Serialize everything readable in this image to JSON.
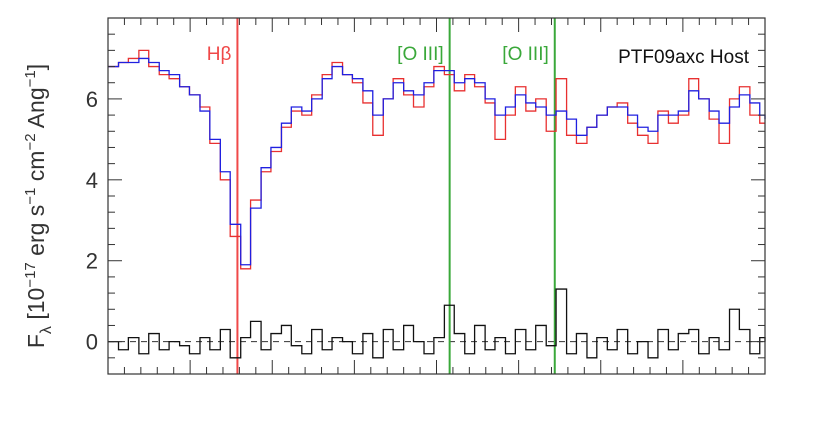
{
  "chart_data": {
    "type": "line",
    "title": "PTF09axc Host",
    "ylabel_parts": {
      "lead": "F",
      "sub": "λ",
      "open": " [10",
      "exp1": "−17",
      "unit1": " erg s",
      "exp2": "−1",
      "unit2": " cm",
      "exp3": "−2",
      "unit3": " Ang",
      "exp4": "−1",
      "close": "]"
    },
    "xlabel": "",
    "ylim": [
      -0.8,
      8.0
    ],
    "xlim": [
      0,
      100
    ],
    "yticks": [
      "0",
      "2",
      "4",
      "6"
    ],
    "ytick_values": [
      0,
      2,
      4,
      6
    ],
    "lines": [
      {
        "label": "Hβ",
        "x": 19.7,
        "color": "#f04848"
      },
      {
        "label": "[O III]",
        "x": 52.0,
        "color": "#3aa83a"
      },
      {
        "label": "[O III]",
        "x": 68.0,
        "color": "#3aa83a"
      }
    ],
    "series": [
      {
        "color": "#e83030",
        "style": "steps",
        "x": [
          0.0,
          1.6,
          3.1,
          4.7,
          6.2,
          7.8,
          9.3,
          10.9,
          12.4,
          14.0,
          15.5,
          17.1,
          18.6,
          20.2,
          21.7,
          23.3,
          24.8,
          26.4,
          27.9,
          29.5,
          31.0,
          32.6,
          34.1,
          35.7,
          37.2,
          38.8,
          40.3,
          41.9,
          43.4,
          45.0,
          46.5,
          48.1,
          49.6,
          51.2,
          52.7,
          54.3,
          55.8,
          57.4,
          58.9,
          60.5,
          62.0,
          63.6,
          65.1,
          66.7,
          68.2,
          69.8,
          71.3,
          72.9,
          74.4,
          76.0,
          77.5,
          79.1,
          80.6,
          82.2,
          83.7,
          85.3,
          86.8,
          88.4,
          89.9,
          91.5,
          93.0,
          94.6,
          96.1,
          97.7,
          99.2,
          100.0
        ],
        "y": [
          6.8,
          6.9,
          7.0,
          7.2,
          6.8,
          6.6,
          6.5,
          6.3,
          6.1,
          5.8,
          4.9,
          4.0,
          2.6,
          1.8,
          3.5,
          4.2,
          4.7,
          5.3,
          5.7,
          5.6,
          6.1,
          6.6,
          6.9,
          6.6,
          6.4,
          5.9,
          5.1,
          6.0,
          6.5,
          6.1,
          5.8,
          6.3,
          6.8,
          6.6,
          6.2,
          6.6,
          6.3,
          5.9,
          5.0,
          5.6,
          6.3,
          5.7,
          6.0,
          5.2,
          6.5,
          5.1,
          4.9,
          5.3,
          5.6,
          5.8,
          5.9,
          5.4,
          5.1,
          4.9,
          5.7,
          5.4,
          5.6,
          6.5,
          6.0,
          5.5,
          4.9,
          6.0,
          6.3,
          5.6,
          5.4,
          5.4
        ]
      },
      {
        "color": "#2020e0",
        "style": "steps",
        "x": [
          0.0,
          1.6,
          3.1,
          4.7,
          6.2,
          7.8,
          9.3,
          10.9,
          12.4,
          14.0,
          15.5,
          17.1,
          18.6,
          20.2,
          21.7,
          23.3,
          24.8,
          26.4,
          27.9,
          29.5,
          31.0,
          32.6,
          34.1,
          35.7,
          37.2,
          38.8,
          40.3,
          41.9,
          43.4,
          45.0,
          46.5,
          48.1,
          49.6,
          51.2,
          52.7,
          54.3,
          55.8,
          57.4,
          58.9,
          60.5,
          62.0,
          63.6,
          65.1,
          66.7,
          68.2,
          69.8,
          71.3,
          72.9,
          74.4,
          76.0,
          77.5,
          79.1,
          80.6,
          82.2,
          83.7,
          85.3,
          86.8,
          88.4,
          89.9,
          91.5,
          93.0,
          94.6,
          96.1,
          97.7,
          99.2,
          100.0
        ],
        "y": [
          6.8,
          6.9,
          6.9,
          7.0,
          6.9,
          6.7,
          6.6,
          6.3,
          6.1,
          5.7,
          5.0,
          4.2,
          2.9,
          1.9,
          3.3,
          4.3,
          4.8,
          5.4,
          5.8,
          5.7,
          6.0,
          6.5,
          6.8,
          6.6,
          6.5,
          6.2,
          5.6,
          6.0,
          6.4,
          6.2,
          6.1,
          6.4,
          6.7,
          6.7,
          6.4,
          6.5,
          6.4,
          6.0,
          5.6,
          5.8,
          6.1,
          5.9,
          5.8,
          5.6,
          5.7,
          5.5,
          5.1,
          5.3,
          5.6,
          5.8,
          5.8,
          5.6,
          5.3,
          5.2,
          5.6,
          5.6,
          5.7,
          6.2,
          6.0,
          5.7,
          5.4,
          5.8,
          6.1,
          5.9,
          5.6,
          5.5
        ]
      },
      {
        "color": "#111111",
        "style": "steps",
        "x": [
          0.0,
          1.6,
          3.1,
          4.7,
          6.2,
          7.8,
          9.3,
          10.9,
          12.4,
          14.0,
          15.5,
          17.1,
          18.6,
          20.2,
          21.7,
          23.3,
          24.8,
          26.4,
          27.9,
          29.5,
          31.0,
          32.6,
          34.1,
          35.7,
          37.2,
          38.8,
          40.3,
          41.9,
          43.4,
          45.0,
          46.5,
          48.1,
          49.6,
          51.2,
          52.7,
          54.3,
          55.8,
          57.4,
          58.9,
          60.5,
          62.0,
          63.6,
          65.1,
          66.7,
          68.2,
          69.8,
          71.3,
          72.9,
          74.4,
          76.0,
          77.5,
          79.1,
          80.6,
          82.2,
          83.7,
          85.3,
          86.8,
          88.4,
          89.9,
          91.5,
          93.0,
          94.6,
          96.1,
          97.7,
          99.2,
          100.0
        ],
        "y": [
          0.0,
          -0.2,
          0.1,
          -0.3,
          0.2,
          -0.2,
          0.0,
          -0.1,
          -0.3,
          0.1,
          -0.2,
          0.3,
          -0.4,
          0.1,
          0.5,
          -0.2,
          0.2,
          0.4,
          -0.1,
          -0.3,
          0.3,
          -0.2,
          0.1,
          0.0,
          -0.3,
          0.2,
          -0.4,
          0.3,
          -0.2,
          0.4,
          0.0,
          -0.3,
          0.1,
          0.9,
          0.2,
          -0.3,
          0.4,
          -0.2,
          0.1,
          -0.3,
          0.3,
          -0.2,
          0.4,
          -0.1,
          1.3,
          -0.3,
          0.2,
          -0.4,
          0.1,
          -0.2,
          0.3,
          -0.3,
          0.0,
          -0.4,
          0.3,
          -0.2,
          0.2,
          0.3,
          -0.3,
          0.1,
          -0.2,
          0.8,
          0.3,
          -0.3,
          0.1,
          0.0
        ]
      }
    ]
  },
  "colors": {
    "axis": "#333333",
    "dash": "#333333"
  }
}
